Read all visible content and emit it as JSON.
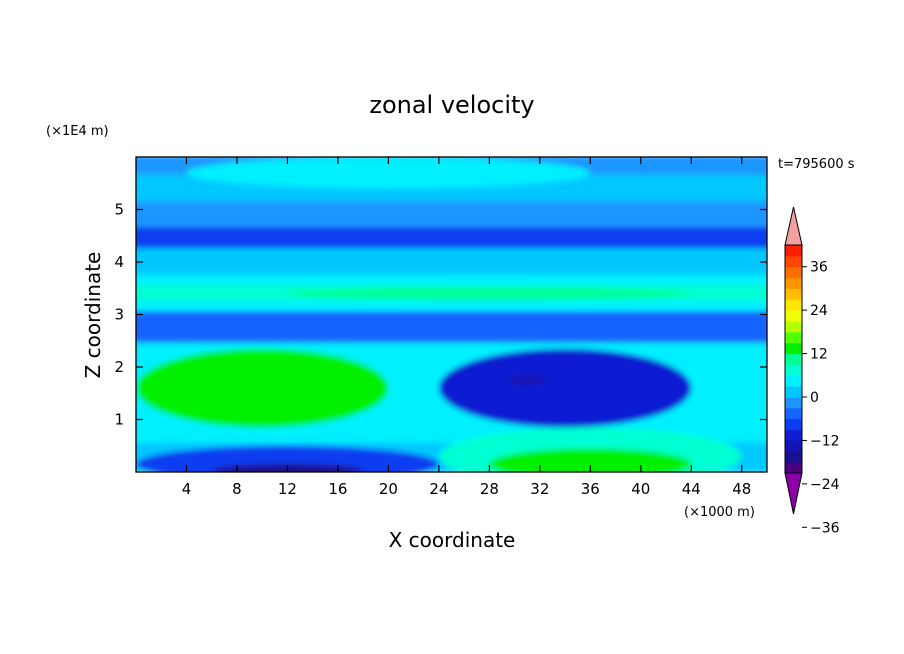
{
  "chart_data": {
    "type": "heatmap",
    "title": "zonal velocity",
    "time_label": "t=795600 s",
    "xlabel": "X coordinate",
    "ylabel": "Z coordinate",
    "x_unit": "(×1000 m)",
    "y_unit": "(×1E4 m)",
    "xlim": [
      0,
      50
    ],
    "ylim": [
      0,
      6
    ],
    "x_ticks": [
      4,
      8,
      12,
      16,
      20,
      24,
      28,
      32,
      36,
      40,
      44,
      48
    ],
    "y_ticks": [
      1,
      2,
      3,
      4,
      5
    ],
    "colorbar": {
      "levels": [
        -42,
        -39,
        -36,
        -33,
        -30,
        -27,
        -24,
        -21,
        -18,
        -15,
        -12,
        -9,
        -6,
        -3,
        0,
        3,
        6,
        9,
        12,
        15,
        18,
        21,
        24,
        27,
        30,
        33,
        36,
        39
      ],
      "labeled_ticks": [
        36,
        24,
        12,
        0,
        -12,
        -24,
        -36
      ],
      "tick_labels": [
        "36",
        "24",
        "12",
        "0",
        "−12",
        "−24",
        "−36"
      ],
      "colors": [
        "#4b0082",
        "#1a0f8f",
        "#1414b4",
        "#0f1ed2",
        "#0a3cf0",
        "#1464ff",
        "#1e96ff",
        "#00c8ff",
        "#00f0ff",
        "#00ffd2",
        "#00ff96",
        "#00f000",
        "#50ff00",
        "#b4ff00",
        "#f0ff00",
        "#ffe600",
        "#ffbe00",
        "#ff9600",
        "#ff6e00",
        "#ff4600",
        "#ff1e00"
      ],
      "under_color": "#8b00a8",
      "over_color": "#f4a0a0"
    },
    "bands": [
      {
        "z": [
          0.0,
          0.05
        ],
        "value": 5
      },
      {
        "z": [
          0.05,
          0.6
        ],
        "value": 2
      },
      {
        "z": [
          0.6,
          1.0
        ],
        "value": 4
      },
      {
        "z": [
          1.0,
          1.9
        ],
        "value": 5
      },
      {
        "z": [
          1.9,
          2.5
        ],
        "value": 4
      },
      {
        "z": [
          2.5,
          3.1
        ],
        "value": -5
      },
      {
        "z": [
          3.1,
          3.3
        ],
        "value": 4
      },
      {
        "z": [
          3.3,
          3.6
        ],
        "value": 8
      },
      {
        "z": [
          3.6,
          3.8
        ],
        "value": 5
      },
      {
        "z": [
          3.8,
          4.3
        ],
        "value": 2
      },
      {
        "z": [
          4.3,
          4.7
        ],
        "value": -7
      },
      {
        "z": [
          4.7,
          5.2
        ],
        "value": -3
      },
      {
        "z": [
          5.2,
          5.7
        ],
        "value": 2
      },
      {
        "z": [
          5.7,
          6.0
        ],
        "value": -2
      }
    ],
    "features": [
      {
        "name": "upper-left-warm-blob",
        "cx": 10,
        "cz": 1.6,
        "rx": 10,
        "rz": 0.75,
        "value": 12
      },
      {
        "name": "right-cool-blob",
        "cx": 34,
        "cz": 1.6,
        "rx": 10,
        "rz": 0.75,
        "value": -10
      },
      {
        "name": "right-cool-core",
        "cx": 31,
        "cz": 1.75,
        "rx": 1.5,
        "rz": 0.1,
        "value": -14
      },
      {
        "name": "bottom-left-cool",
        "cx": 12,
        "cz": 0.15,
        "rx": 12,
        "rz": 0.35,
        "value": -8
      },
      {
        "name": "bottom-left-cool-core",
        "cx": 12,
        "cz": 0.03,
        "rx": 6,
        "rz": 0.12,
        "value": -16
      },
      {
        "name": "bottom-right-warm",
        "cx": 36,
        "cz": 0.3,
        "rx": 12,
        "rz": 0.55,
        "value": 8
      },
      {
        "name": "bottom-right-warm-core",
        "cx": 36,
        "cz": 0.15,
        "rx": 8,
        "rz": 0.3,
        "value": 13
      },
      {
        "name": "top-green-lobe",
        "cx": 20,
        "cz": 5.7,
        "rx": 16,
        "rz": 0.3,
        "value": 3
      },
      {
        "name": "mid-warm-streak",
        "cx": 28,
        "cz": 3.4,
        "rx": 16,
        "rz": 0.12,
        "value": 11
      }
    ]
  }
}
